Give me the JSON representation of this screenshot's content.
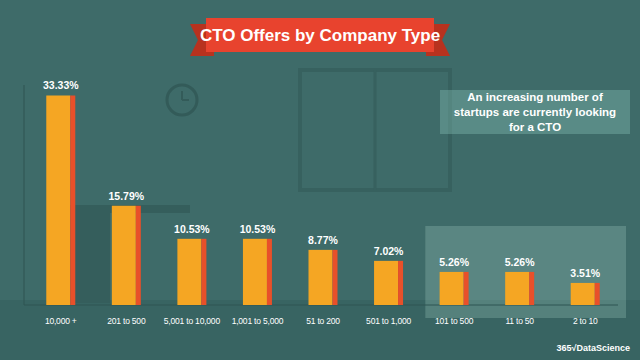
{
  "chart_data": {
    "type": "bar",
    "title": "CTO Offers by Company Type",
    "annotations": [
      "An increasing number of startups are currently looking for a CTO",
      "365√DataScience"
    ],
    "categories": [
      "10,000 +",
      "201 to 500",
      "5,001 to 10,000",
      "1,001 to 5,000",
      "51 to 200",
      "501 to 1,000",
      "101 to 500",
      "11 to 50",
      "2 to 10"
    ],
    "values": [
      33.33,
      15.79,
      10.53,
      10.53,
      8.77,
      7.02,
      5.26,
      5.26,
      3.51
    ],
    "value_labels": [
      "33.33%",
      "15.79%",
      "10.53%",
      "10.53%",
      "8.77%",
      "7.02%",
      "5.26%",
      "5.26%",
      "3.51%"
    ],
    "color": "#f5a623",
    "ylim": [
      0,
      35
    ],
    "grid": false,
    "data_labels": true,
    "tick_labels": false
  }
}
